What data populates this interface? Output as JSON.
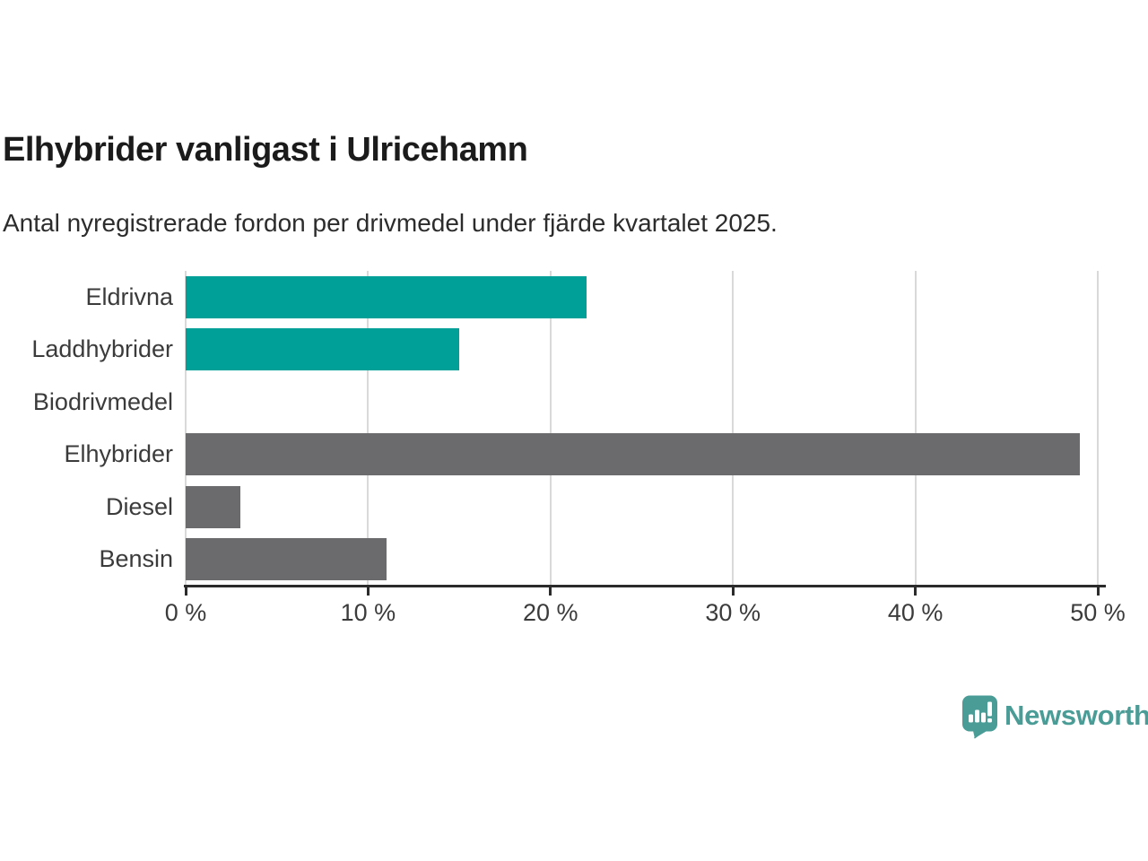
{
  "header": {
    "title": "Elhybrider vanligast i Ulricehamn",
    "subtitle": "Antal nyregistrerade fordon per drivmedel under fjärde kvartalet 2025."
  },
  "chart_data": {
    "type": "bar",
    "orientation": "horizontal",
    "title": "Elhybrider vanligast i Ulricehamn",
    "subtitle": "Antal nyregistrerade fordon per drivmedel under fjärde kvartalet 2025.",
    "categories": [
      "Eldrivna",
      "Laddhybrider",
      "Biodrivmedel",
      "Elhybrider",
      "Diesel",
      "Bensin"
    ],
    "values": [
      22,
      15,
      0,
      49,
      3,
      11
    ],
    "unit": "%",
    "bar_colors": [
      "#00a099",
      "#00a099",
      "#00a099",
      "#6b6b6e",
      "#6b6b6e",
      "#6b6b6e"
    ],
    "xlim": [
      0,
      50
    ],
    "x_ticks": [
      0,
      10,
      20,
      30,
      40,
      50
    ],
    "x_tick_labels": [
      "0 %",
      "10 %",
      "20 %",
      "30 %",
      "40 %",
      "50 %"
    ],
    "grid": true,
    "legend_position": "none"
  },
  "branding": {
    "logo_text": "Newsworthy",
    "logo_icon": "newsworthy-speech-bubble-bar-chart-icon",
    "logo_color": "#4a9c97"
  },
  "colors": {
    "background": "#ffffff",
    "accent_teal": "#00a099",
    "neutral_gray": "#6b6b6e",
    "gridline": "#d9d9d9",
    "axis": "#2b2b2b",
    "text": "#3b3b3b"
  }
}
